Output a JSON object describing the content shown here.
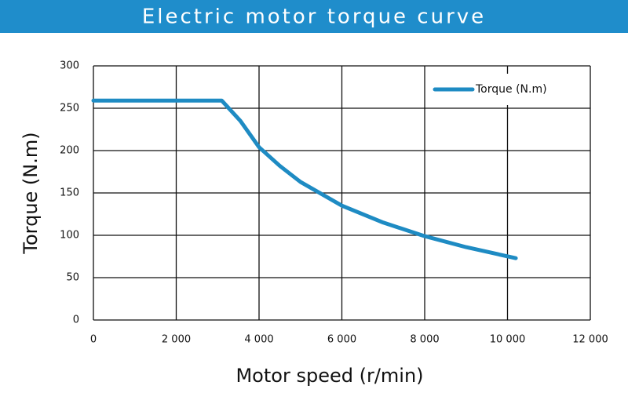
{
  "chart_data": {
    "type": "line",
    "title": "Electric motor torque curve",
    "x_label": "Motor speed (r/min)",
    "y_label": "Torque (N.m)",
    "x": [
      0,
      3100,
      3550,
      4000,
      4500,
      5000,
      6000,
      7000,
      8000,
      9000,
      10200
    ],
    "series": [
      {
        "name": "Torque (N.m)",
        "color": "#1e8bc3",
        "values": [
          259,
          259,
          235,
          204,
          182,
          163,
          135,
          115,
          99,
          86,
          73
        ]
      }
    ],
    "xlim": [
      0,
      12000
    ],
    "xticks": [
      0,
      {
        "value": 2000,
        "label": "2 000"
      },
      {
        "value": 4000,
        "label": "4 000"
      },
      {
        "value": 6000,
        "label": "6 000"
      },
      {
        "value": 8000,
        "label": "8 000"
      },
      {
        "value": 10000,
        "label": "10 000"
      },
      {
        "value": 12000,
        "label": "12 000"
      }
    ],
    "ylim": [
      0,
      300
    ],
    "yticks": [
      0,
      50,
      100,
      150,
      200,
      250,
      300
    ],
    "grid": true,
    "legend": "upper right",
    "title_color": "#1f8dcb"
  }
}
